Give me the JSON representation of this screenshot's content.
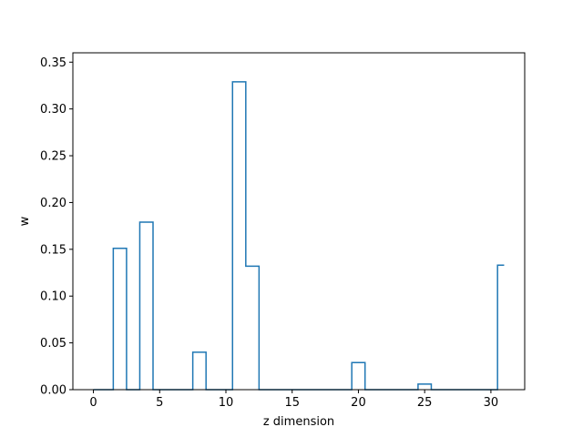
{
  "chart_data": {
    "type": "line",
    "drawstyle": "steps-mid",
    "title": "",
    "xlabel": "z dimension",
    "ylabel": "w",
    "xlim": [
      -1.55,
      32.55
    ],
    "ylim": [
      0.0,
      0.36
    ],
    "xticks": [
      0,
      5,
      10,
      15,
      20,
      25,
      30
    ],
    "yticks": [
      0.0,
      0.05,
      0.1,
      0.15,
      0.2,
      0.25,
      0.3,
      0.35
    ],
    "ytick_format_decimals": 2,
    "grid": false,
    "legend": "none",
    "color": "#1f77b4",
    "x": [
      0,
      1,
      2,
      3,
      4,
      5,
      6,
      7,
      8,
      9,
      10,
      11,
      12,
      13,
      14,
      15,
      16,
      17,
      18,
      19,
      20,
      21,
      22,
      23,
      24,
      25,
      26,
      27,
      28,
      29,
      30,
      31
    ],
    "series": [
      {
        "values": [
          0.0,
          0.0,
          0.151,
          0.0,
          0.179,
          0.0,
          0.0,
          0.0,
          0.04,
          0.0,
          0.0,
          0.329,
          0.132,
          0.0,
          0.0,
          0.0,
          0.0,
          0.0,
          0.0,
          0.0,
          0.029,
          0.0,
          0.0,
          0.0,
          0.0,
          0.006,
          0.0,
          0.0,
          0.0,
          0.0,
          0.0,
          0.133
        ]
      }
    ]
  }
}
